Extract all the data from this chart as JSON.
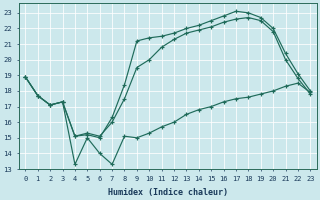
{
  "bg_color": "#cce8ec",
  "line_color": "#1f6b5a",
  "xlabel": "Humidex (Indice chaleur)",
  "xlim": [
    -0.5,
    23.5
  ],
  "ylim": [
    13,
    23.6
  ],
  "yticks": [
    13,
    14,
    15,
    16,
    17,
    18,
    19,
    20,
    21,
    22,
    23
  ],
  "xticks": [
    0,
    1,
    2,
    3,
    4,
    5,
    6,
    7,
    8,
    9,
    10,
    11,
    12,
    13,
    14,
    15,
    16,
    17,
    18,
    19,
    20,
    21,
    22,
    23
  ],
  "line1_x": [
    0,
    1,
    2,
    3,
    4,
    5,
    6,
    7,
    8,
    9,
    10,
    11,
    12,
    13,
    14,
    15,
    16,
    17,
    18,
    19,
    20,
    21,
    22,
    23
  ],
  "line1_y": [
    18.9,
    17.7,
    17.1,
    17.3,
    15.1,
    15.2,
    15.0,
    16.3,
    18.4,
    21.2,
    21.4,
    21.5,
    21.7,
    22.0,
    22.2,
    22.5,
    22.8,
    23.1,
    23.0,
    22.7,
    22.0,
    20.4,
    19.1,
    18.0
  ],
  "line2_x": [
    0,
    1,
    2,
    3,
    4,
    5,
    6,
    7,
    8,
    9,
    10,
    11,
    12,
    13,
    14,
    15,
    16,
    17,
    18,
    19,
    20,
    21,
    22,
    23
  ],
  "line2_y": [
    18.9,
    17.7,
    17.1,
    17.3,
    15.1,
    15.3,
    15.1,
    16.0,
    17.5,
    19.5,
    20.0,
    20.8,
    21.3,
    21.7,
    21.9,
    22.1,
    22.4,
    22.6,
    22.7,
    22.5,
    21.8,
    20.0,
    18.8,
    17.8
  ],
  "line3_x": [
    0,
    1,
    2,
    3,
    4,
    5,
    6,
    7,
    8,
    9,
    10,
    11,
    12,
    13,
    14,
    15,
    16,
    17,
    18,
    19,
    20,
    21,
    22,
    23
  ],
  "line3_y": [
    18.9,
    17.7,
    17.1,
    17.3,
    13.3,
    15.0,
    14.0,
    13.3,
    15.1,
    15.0,
    15.3,
    15.7,
    16.0,
    16.5,
    16.8,
    17.0,
    17.3,
    17.5,
    17.6,
    17.8,
    18.0,
    18.3,
    18.5,
    17.9
  ]
}
